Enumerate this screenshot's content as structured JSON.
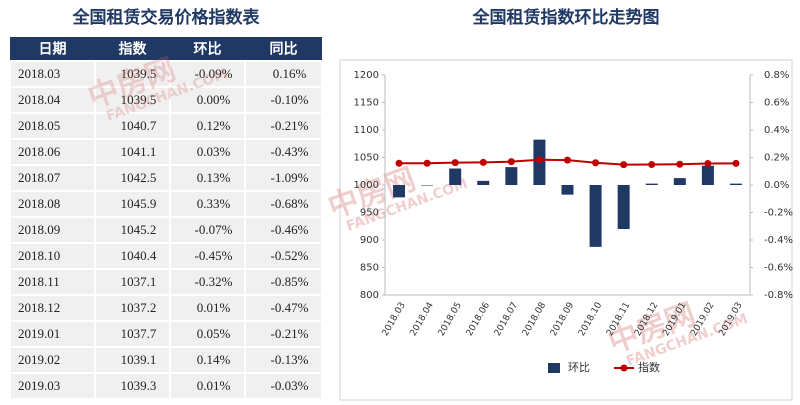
{
  "table": {
    "title": "全国租赁交易价格指数表",
    "header": [
      "日期",
      "指数",
      "环比",
      "同比"
    ],
    "rows": [
      [
        "2018.03",
        "1039.5",
        "-0.09%",
        "0.16%"
      ],
      [
        "2018.04",
        "1039.5",
        "0.00%",
        "-0.10%"
      ],
      [
        "2018.05",
        "1040.7",
        "0.12%",
        "-0.21%"
      ],
      [
        "2018.06",
        "1041.1",
        "0.03%",
        "-0.43%"
      ],
      [
        "2018.07",
        "1042.5",
        "0.13%",
        "-1.09%"
      ],
      [
        "2018.08",
        "1045.9",
        "0.33%",
        "-0.68%"
      ],
      [
        "2018.09",
        "1045.2",
        "-0.07%",
        "-0.46%"
      ],
      [
        "2018.10",
        "1040.4",
        "-0.45%",
        "-0.52%"
      ],
      [
        "2018.11",
        "1037.1",
        "-0.32%",
        "-0.85%"
      ],
      [
        "2018.12",
        "1037.2",
        "0.01%",
        "-0.47%"
      ],
      [
        "2019.01",
        "1037.7",
        "0.05%",
        "-0.21%"
      ],
      [
        "2019.02",
        "1039.1",
        "0.14%",
        "-0.13%"
      ],
      [
        "2019.03",
        "1039.3",
        "0.01%",
        "-0.03%"
      ]
    ]
  },
  "watermark": {
    "logo": "中房网",
    "site": "FANGCHAN.COM"
  },
  "chart_data": {
    "type": "combo",
    "title": "全国租赁指数环比走势图",
    "categories": [
      "2018.03",
      "2018.04",
      "2018.05",
      "2018.06",
      "2018.07",
      "2018.08",
      "2018.09",
      "2018.10",
      "2018.11",
      "2018.12",
      "2019.01",
      "2019.02",
      "2019.03"
    ],
    "series": [
      {
        "name": "环比",
        "kind": "bar",
        "axis": "y2",
        "color": "#1f3864",
        "values": [
          -0.09,
          0.0,
          0.12,
          0.03,
          0.13,
          0.33,
          -0.07,
          -0.45,
          -0.32,
          0.01,
          0.05,
          0.14,
          0.01
        ]
      },
      {
        "name": "指数",
        "kind": "line",
        "color": "#c00000",
        "values": [
          1039.5,
          1039.5,
          1040.7,
          1041.1,
          1042.5,
          1045.9,
          1045.2,
          1040.4,
          1037.1,
          1037.2,
          1037.7,
          1039.1,
          1039.3
        ]
      }
    ],
    "ylim": [
      800,
      1200
    ],
    "yticks": [
      800,
      850,
      900,
      950,
      1000,
      1050,
      1100,
      1150,
      1200
    ],
    "y2lim": [
      -0.8,
      0.8
    ],
    "y2ticks": [
      {
        "value": -0.8,
        "label": "-0.8%"
      },
      {
        "value": -0.6,
        "label": "-0.6%"
      },
      {
        "value": -0.4,
        "label": "-0.4%"
      },
      {
        "value": -0.2,
        "label": "-0.2%"
      },
      {
        "value": 0,
        "label": "0.0%"
      },
      {
        "value": 0.2,
        "label": "0.2%"
      },
      {
        "value": 0.4,
        "label": "0.4%"
      },
      {
        "value": 0.6,
        "label": "0.6%"
      },
      {
        "value": 0.8,
        "label": "0.8%"
      }
    ],
    "legend": "bottom",
    "grid": false
  }
}
